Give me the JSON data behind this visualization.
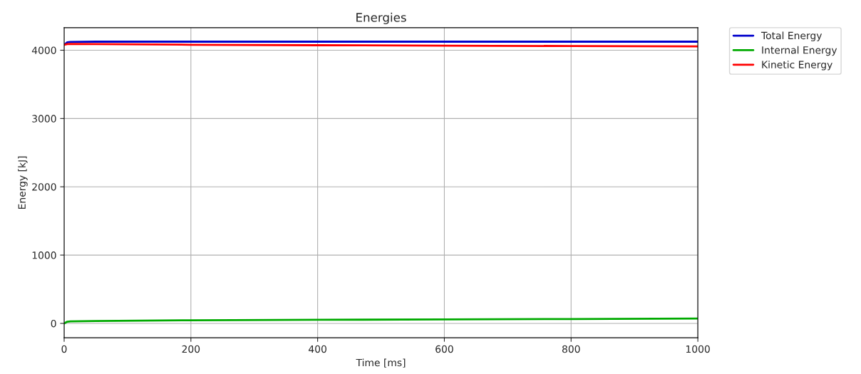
{
  "chart_data": {
    "type": "line",
    "title": "Energies",
    "xlabel": "Time [ms]",
    "ylabel": "Energy [kJ]",
    "x": [
      0,
      5,
      10,
      50,
      200,
      400,
      600,
      800,
      1000
    ],
    "series": [
      {
        "name": "Total Energy",
        "color": "#0000cc",
        "values": [
          4080,
          4115,
          4122,
          4125,
          4125,
          4125,
          4125,
          4125,
          4125
        ]
      },
      {
        "name": "Internal Energy",
        "color": "#00aa00",
        "values": [
          0,
          25,
          30,
          35,
          45,
          52,
          58,
          64,
          70
        ]
      },
      {
        "name": "Kinetic Energy",
        "color": "#ff0000",
        "values": [
          4080,
          4090,
          4092,
          4090,
          4080,
          4073,
          4067,
          4061,
          4055
        ]
      }
    ],
    "xlim": [
      0,
      1000
    ],
    "ylim": [
      -210,
      4330
    ],
    "xticks": [
      0,
      200,
      400,
      600,
      800,
      1000
    ],
    "yticks": [
      0,
      1000,
      2000,
      3000,
      4000
    ],
    "grid": true,
    "legend": "top right",
    "marker": "none",
    "line_style": "solid"
  }
}
